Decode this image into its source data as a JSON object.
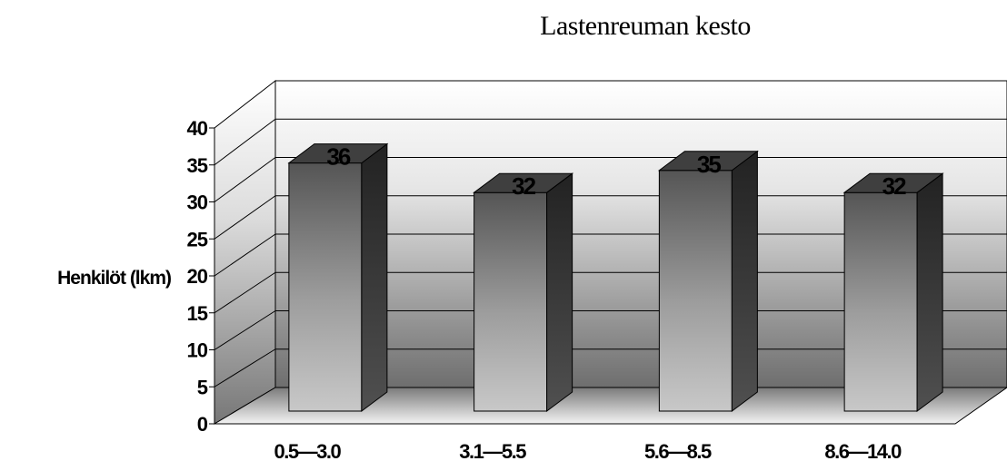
{
  "chart_data": {
    "type": "bar",
    "title": "Lastenreuman kesto",
    "ylabel": "Henkilöt (lkm)",
    "xlabel": "",
    "categories": [
      "0.5—3.0",
      "3.1—5.5",
      "5.6—8.5",
      "8.6—14.0"
    ],
    "values": [
      36,
      32,
      35,
      32
    ],
    "data_labels": [
      "36",
      "32",
      "35",
      "32"
    ],
    "ylim": [
      0,
      40
    ],
    "yticks": [
      0,
      5,
      10,
      15,
      20,
      25,
      30,
      35,
      40
    ],
    "ytick_labels": [
      "0",
      "5",
      "10",
      "15",
      "20",
      "25",
      "30",
      "35",
      "40"
    ],
    "style": "3d-bar",
    "grid": true,
    "legend": "none",
    "colors": {
      "bar_light": "#c4c4c4",
      "bar_dark": "#555555",
      "bar_side": "#2b2b2b",
      "bar_top": "#404040",
      "grid": "#000000"
    }
  }
}
